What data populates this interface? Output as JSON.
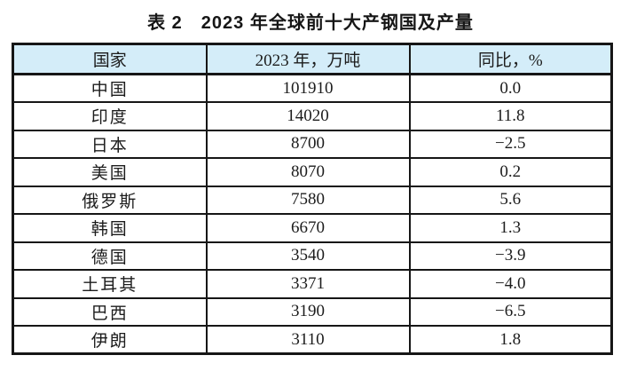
{
  "title": "表 2　2023 年全球前十大产钢国及产量",
  "table": {
    "headers": [
      "国家",
      "2023 年，万吨",
      "同比，%"
    ],
    "rows": [
      {
        "country": "中国",
        "production_2023": "101910",
        "yoy_pct": "0.0"
      },
      {
        "country": "印度",
        "production_2023": "14020",
        "yoy_pct": "11.8"
      },
      {
        "country": "日本",
        "production_2023": "8700",
        "yoy_pct": "−2.5"
      },
      {
        "country": "美国",
        "production_2023": "8070",
        "yoy_pct": "0.2"
      },
      {
        "country": "俄罗斯",
        "production_2023": "7580",
        "yoy_pct": "5.6"
      },
      {
        "country": "韩国",
        "production_2023": "6670",
        "yoy_pct": "1.3"
      },
      {
        "country": "德国",
        "production_2023": "3540",
        "yoy_pct": "−3.9"
      },
      {
        "country": "土耳其",
        "production_2023": "3371",
        "yoy_pct": "−4.0"
      },
      {
        "country": "巴西",
        "production_2023": "3190",
        "yoy_pct": "−6.5"
      },
      {
        "country": "伊朗",
        "production_2023": "3110",
        "yoy_pct": "1.8"
      }
    ],
    "colors": {
      "header_bg": "#d4edf9",
      "border": "#161616",
      "text": "#1c1c1c"
    }
  }
}
